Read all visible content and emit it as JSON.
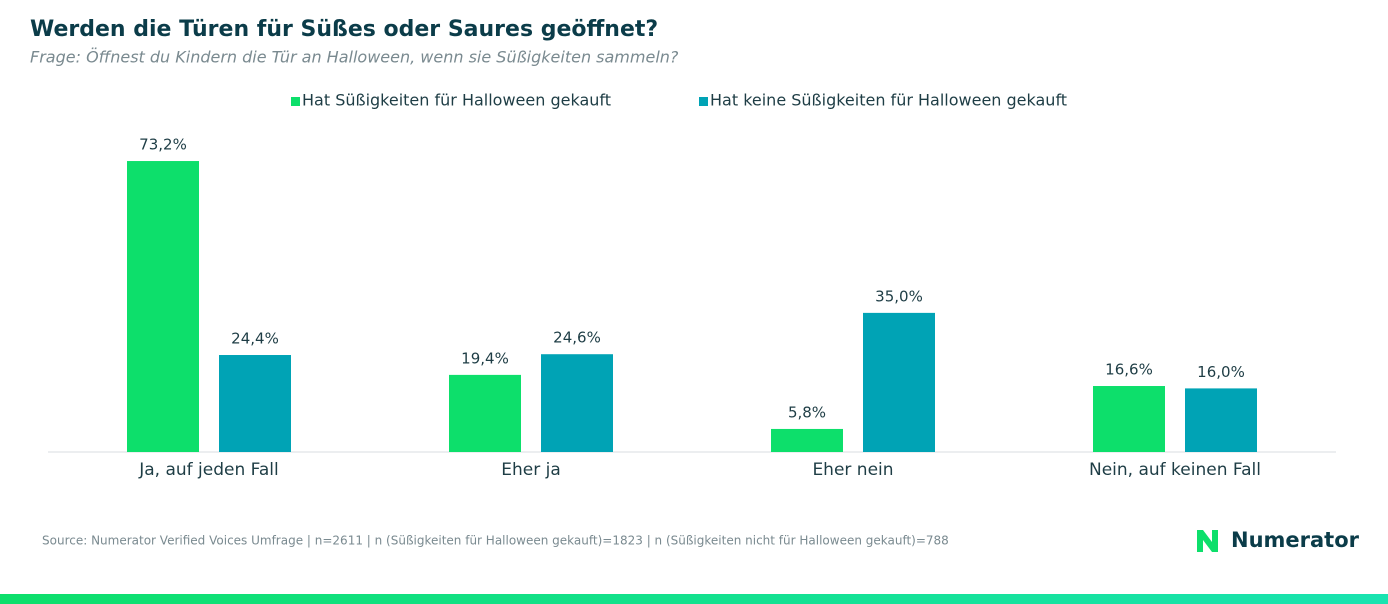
{
  "chart_data": {
    "type": "bar",
    "title": "Werden die Türen für Süßes oder Saures geöffnet?",
    "subtitle": "Frage: Öffnest du Kindern die Tür an Halloween, wenn sie Süßigkeiten sammeln?",
    "categories": [
      "Ja, auf jeden Fall",
      "Eher ja",
      "Eher nein",
      "Nein, auf keinen Fall"
    ],
    "series": [
      {
        "name": "Hat Süßigkeiten für Halloween gekauft",
        "color": "#0ddf6b",
        "values": [
          73.2,
          19.4,
          5.8,
          16.6
        ],
        "value_labels": [
          "73,2%",
          "19,4%",
          "5,8%",
          "16,6%"
        ]
      },
      {
        "name": "Hat keine Süßigkeiten für Halloween gekauft",
        "color": "#00a3b5",
        "values": [
          24.4,
          24.6,
          35.0,
          16.0
        ],
        "value_labels": [
          "24,4%",
          "24,6%",
          "35,0%",
          "16,0%"
        ]
      }
    ],
    "source": "Source: Numerator Verified Voices Umfrage | n=2611 | n (Süßigkeiten für Halloween gekauft)=1823 | n (Süßigkeiten nicht für Halloween gekauft)=788",
    "brand": "Numerator"
  }
}
